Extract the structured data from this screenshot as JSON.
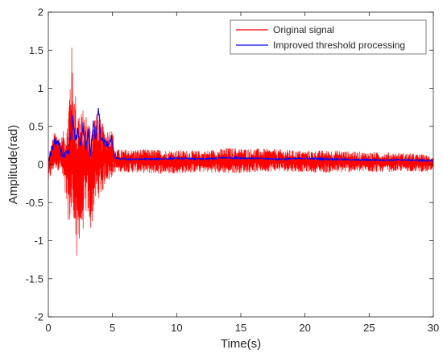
{
  "chart_data": {
    "type": "line",
    "title": "",
    "xlabel": "Time(s)",
    "ylabel": "Amplitude(rad)",
    "xlim": [
      0,
      30
    ],
    "ylim": [
      -2,
      2
    ],
    "x_ticks": [
      0,
      5,
      10,
      15,
      20,
      25,
      30
    ],
    "y_ticks": [
      -2,
      -1.5,
      -1,
      -0.5,
      0,
      0.5,
      1,
      1.5,
      2
    ],
    "x_tick_labels": [
      "0",
      "5",
      "10",
      "15",
      "20",
      "25",
      "30"
    ],
    "y_tick_labels": [
      "-2",
      "-1.5",
      "-1",
      "-0.5",
      "0",
      "0.5",
      "1",
      "1.5",
      "2"
    ],
    "grid": false,
    "legend_position": "top-right",
    "series": [
      {
        "name": "Original signal",
        "color": "#ff0000",
        "description_values": "noisy signal: ~±0.15 around 0.05 after 5 s, large oscillation 1.5–4.5 s",
        "x": [
          0,
          0.5,
          1.0,
          1.5,
          1.8,
          2.0,
          2.2,
          2.4,
          2.6,
          2.8,
          3.0,
          3.3,
          3.6,
          3.9,
          4.2,
          4.5,
          4.8,
          5.0,
          5.2,
          6,
          8,
          10,
          12,
          14,
          16,
          18,
          20,
          22,
          24,
          26,
          28,
          30
        ],
        "upper": [
          0.12,
          0.45,
          0.35,
          0.6,
          1.65,
          1.0,
          0.95,
          0.8,
          0.7,
          0.75,
          0.65,
          0.6,
          0.7,
          0.65,
          0.55,
          0.45,
          0.5,
          0.45,
          0.2,
          0.2,
          0.2,
          0.19,
          0.18,
          0.22,
          0.21,
          0.2,
          0.18,
          0.19,
          0.17,
          0.16,
          0.15,
          0.12
        ],
        "lower": [
          -0.25,
          -0.05,
          -0.1,
          -0.7,
          -0.95,
          -0.65,
          -1.5,
          -1.0,
          -0.95,
          -0.8,
          -0.6,
          -0.9,
          -0.55,
          -0.45,
          -0.4,
          -0.2,
          -0.25,
          -0.15,
          -0.1,
          -0.1,
          -0.12,
          -0.12,
          -0.1,
          -0.12,
          -0.1,
          -0.09,
          -0.1,
          -0.11,
          -0.1,
          -0.1,
          -0.09,
          -0.1
        ]
      },
      {
        "name": "Improved threshold processing",
        "color": "#0000ff",
        "x": [
          0,
          0.5,
          0.8,
          1.2,
          1.6,
          1.9,
          2.1,
          2.3,
          2.5,
          2.7,
          2.9,
          3.1,
          3.3,
          3.5,
          3.7,
          3.9,
          4.1,
          4.3,
          4.6,
          4.9,
          5.2,
          6,
          8,
          10,
          12,
          14,
          16,
          18,
          20,
          22,
          24,
          26,
          28,
          30
        ],
        "values": [
          0.05,
          0.3,
          0.25,
          0.1,
          0.15,
          0.6,
          0.3,
          0.45,
          0.25,
          0.5,
          0.2,
          0.45,
          0.15,
          0.55,
          0.3,
          0.75,
          0.35,
          0.3,
          0.25,
          0.35,
          0.08,
          0.07,
          0.07,
          0.08,
          0.07,
          0.09,
          0.08,
          0.07,
          0.08,
          0.07,
          0.06,
          0.06,
          0.06,
          0.05
        ]
      }
    ]
  }
}
